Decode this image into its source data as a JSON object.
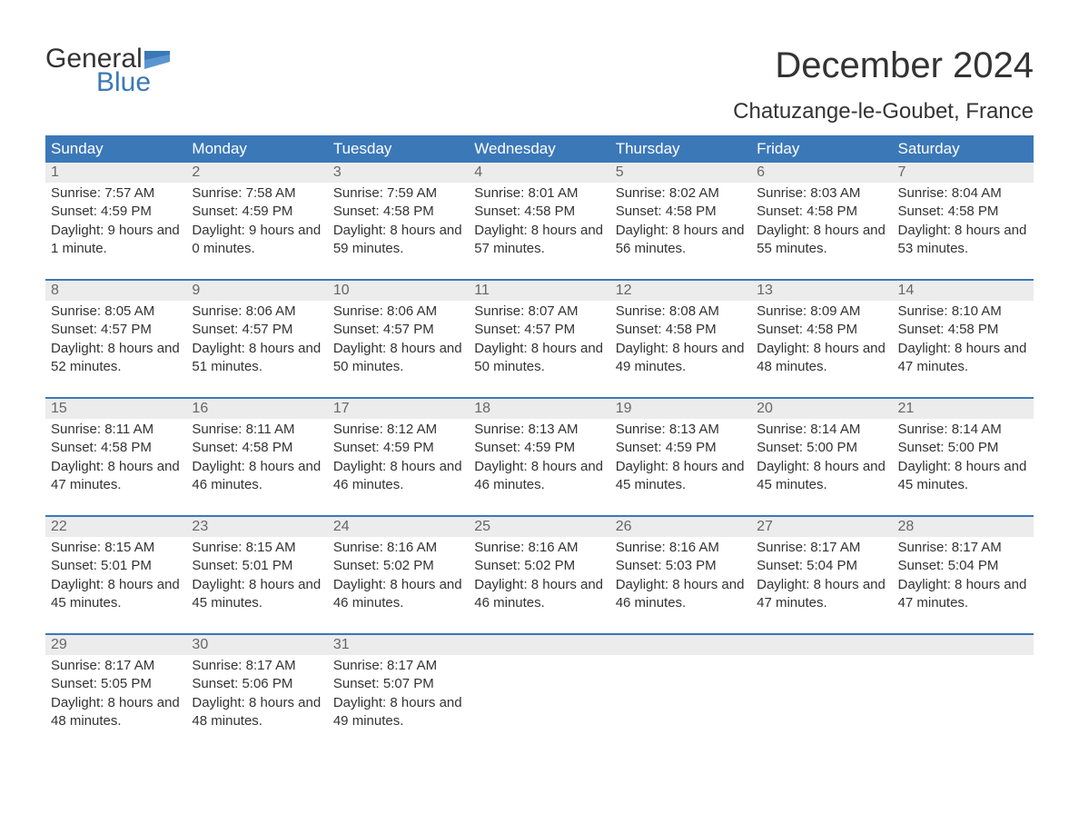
{
  "branding": {
    "word1": "General",
    "word2": "Blue",
    "logo_color": "#3b78b8"
  },
  "title": "December 2024",
  "location": "Chatuzange-le-Goubet, France",
  "colors": {
    "header_bg": "#3b78b8",
    "header_text": "#ffffff",
    "daynum_bg": "#ececec",
    "daynum_text": "#666666",
    "body_text": "#333333",
    "row_border": "#3b78b8",
    "page_bg": "#ffffff"
  },
  "fonts": {
    "title_size_pt": 40,
    "location_size_pt": 24,
    "dow_size_pt": 17,
    "body_size_pt": 15
  },
  "days_of_week": [
    "Sunday",
    "Monday",
    "Tuesday",
    "Wednesday",
    "Thursday",
    "Friday",
    "Saturday"
  ],
  "labels": {
    "sunrise": "Sunrise:",
    "sunset": "Sunset:",
    "daylight": "Daylight:"
  },
  "weeks": [
    [
      {
        "n": "1",
        "sunrise": "7:57 AM",
        "sunset": "4:59 PM",
        "daylight": "9 hours and 1 minute."
      },
      {
        "n": "2",
        "sunrise": "7:58 AM",
        "sunset": "4:59 PM",
        "daylight": "9 hours and 0 minutes."
      },
      {
        "n": "3",
        "sunrise": "7:59 AM",
        "sunset": "4:58 PM",
        "daylight": "8 hours and 59 minutes."
      },
      {
        "n": "4",
        "sunrise": "8:01 AM",
        "sunset": "4:58 PM",
        "daylight": "8 hours and 57 minutes."
      },
      {
        "n": "5",
        "sunrise": "8:02 AM",
        "sunset": "4:58 PM",
        "daylight": "8 hours and 56 minutes."
      },
      {
        "n": "6",
        "sunrise": "8:03 AM",
        "sunset": "4:58 PM",
        "daylight": "8 hours and 55 minutes."
      },
      {
        "n": "7",
        "sunrise": "8:04 AM",
        "sunset": "4:58 PM",
        "daylight": "8 hours and 53 minutes."
      }
    ],
    [
      {
        "n": "8",
        "sunrise": "8:05 AM",
        "sunset": "4:57 PM",
        "daylight": "8 hours and 52 minutes."
      },
      {
        "n": "9",
        "sunrise": "8:06 AM",
        "sunset": "4:57 PM",
        "daylight": "8 hours and 51 minutes."
      },
      {
        "n": "10",
        "sunrise": "8:06 AM",
        "sunset": "4:57 PM",
        "daylight": "8 hours and 50 minutes."
      },
      {
        "n": "11",
        "sunrise": "8:07 AM",
        "sunset": "4:57 PM",
        "daylight": "8 hours and 50 minutes."
      },
      {
        "n": "12",
        "sunrise": "8:08 AM",
        "sunset": "4:58 PM",
        "daylight": "8 hours and 49 minutes."
      },
      {
        "n": "13",
        "sunrise": "8:09 AM",
        "sunset": "4:58 PM",
        "daylight": "8 hours and 48 minutes."
      },
      {
        "n": "14",
        "sunrise": "8:10 AM",
        "sunset": "4:58 PM",
        "daylight": "8 hours and 47 minutes."
      }
    ],
    [
      {
        "n": "15",
        "sunrise": "8:11 AM",
        "sunset": "4:58 PM",
        "daylight": "8 hours and 47 minutes."
      },
      {
        "n": "16",
        "sunrise": "8:11 AM",
        "sunset": "4:58 PM",
        "daylight": "8 hours and 46 minutes."
      },
      {
        "n": "17",
        "sunrise": "8:12 AM",
        "sunset": "4:59 PM",
        "daylight": "8 hours and 46 minutes."
      },
      {
        "n": "18",
        "sunrise": "8:13 AM",
        "sunset": "4:59 PM",
        "daylight": "8 hours and 46 minutes."
      },
      {
        "n": "19",
        "sunrise": "8:13 AM",
        "sunset": "4:59 PM",
        "daylight": "8 hours and 45 minutes."
      },
      {
        "n": "20",
        "sunrise": "8:14 AM",
        "sunset": "5:00 PM",
        "daylight": "8 hours and 45 minutes."
      },
      {
        "n": "21",
        "sunrise": "8:14 AM",
        "sunset": "5:00 PM",
        "daylight": "8 hours and 45 minutes."
      }
    ],
    [
      {
        "n": "22",
        "sunrise": "8:15 AM",
        "sunset": "5:01 PM",
        "daylight": "8 hours and 45 minutes."
      },
      {
        "n": "23",
        "sunrise": "8:15 AM",
        "sunset": "5:01 PM",
        "daylight": "8 hours and 45 minutes."
      },
      {
        "n": "24",
        "sunrise": "8:16 AM",
        "sunset": "5:02 PM",
        "daylight": "8 hours and 46 minutes."
      },
      {
        "n": "25",
        "sunrise": "8:16 AM",
        "sunset": "5:02 PM",
        "daylight": "8 hours and 46 minutes."
      },
      {
        "n": "26",
        "sunrise": "8:16 AM",
        "sunset": "5:03 PM",
        "daylight": "8 hours and 46 minutes."
      },
      {
        "n": "27",
        "sunrise": "8:17 AM",
        "sunset": "5:04 PM",
        "daylight": "8 hours and 47 minutes."
      },
      {
        "n": "28",
        "sunrise": "8:17 AM",
        "sunset": "5:04 PM",
        "daylight": "8 hours and 47 minutes."
      }
    ],
    [
      {
        "n": "29",
        "sunrise": "8:17 AM",
        "sunset": "5:05 PM",
        "daylight": "8 hours and 48 minutes."
      },
      {
        "n": "30",
        "sunrise": "8:17 AM",
        "sunset": "5:06 PM",
        "daylight": "8 hours and 48 minutes."
      },
      {
        "n": "31",
        "sunrise": "8:17 AM",
        "sunset": "5:07 PM",
        "daylight": "8 hours and 49 minutes."
      },
      null,
      null,
      null,
      null
    ]
  ]
}
